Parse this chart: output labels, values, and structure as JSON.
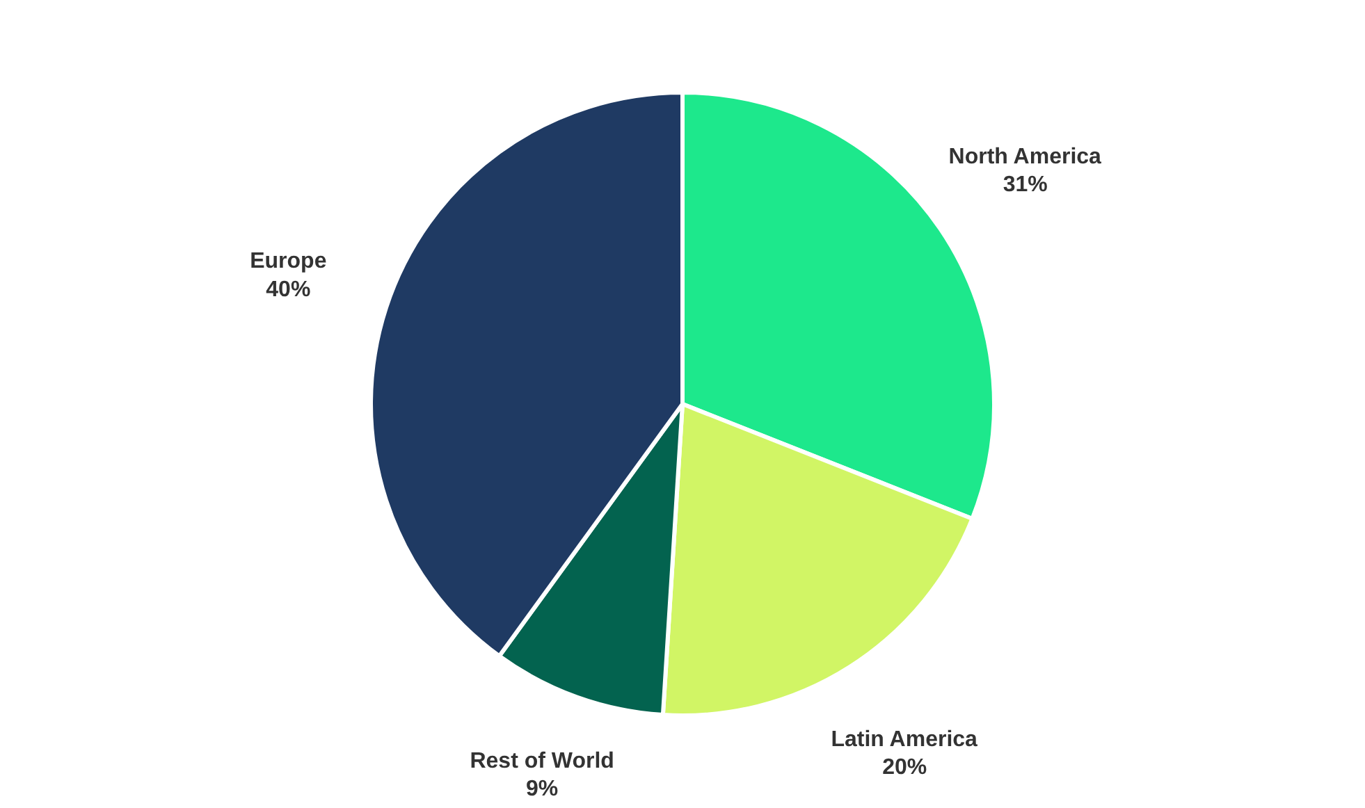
{
  "chart_data": {
    "type": "pie",
    "categories": [
      "North America",
      "Latin America",
      "Rest of World",
      "Europe"
    ],
    "values": [
      31,
      20,
      9,
      40
    ],
    "colors": [
      "#1de88c",
      "#d1f565",
      "#03634f",
      "#1f3a63"
    ],
    "value_labels": [
      "31%",
      "20%",
      "9%",
      "40%"
    ]
  }
}
